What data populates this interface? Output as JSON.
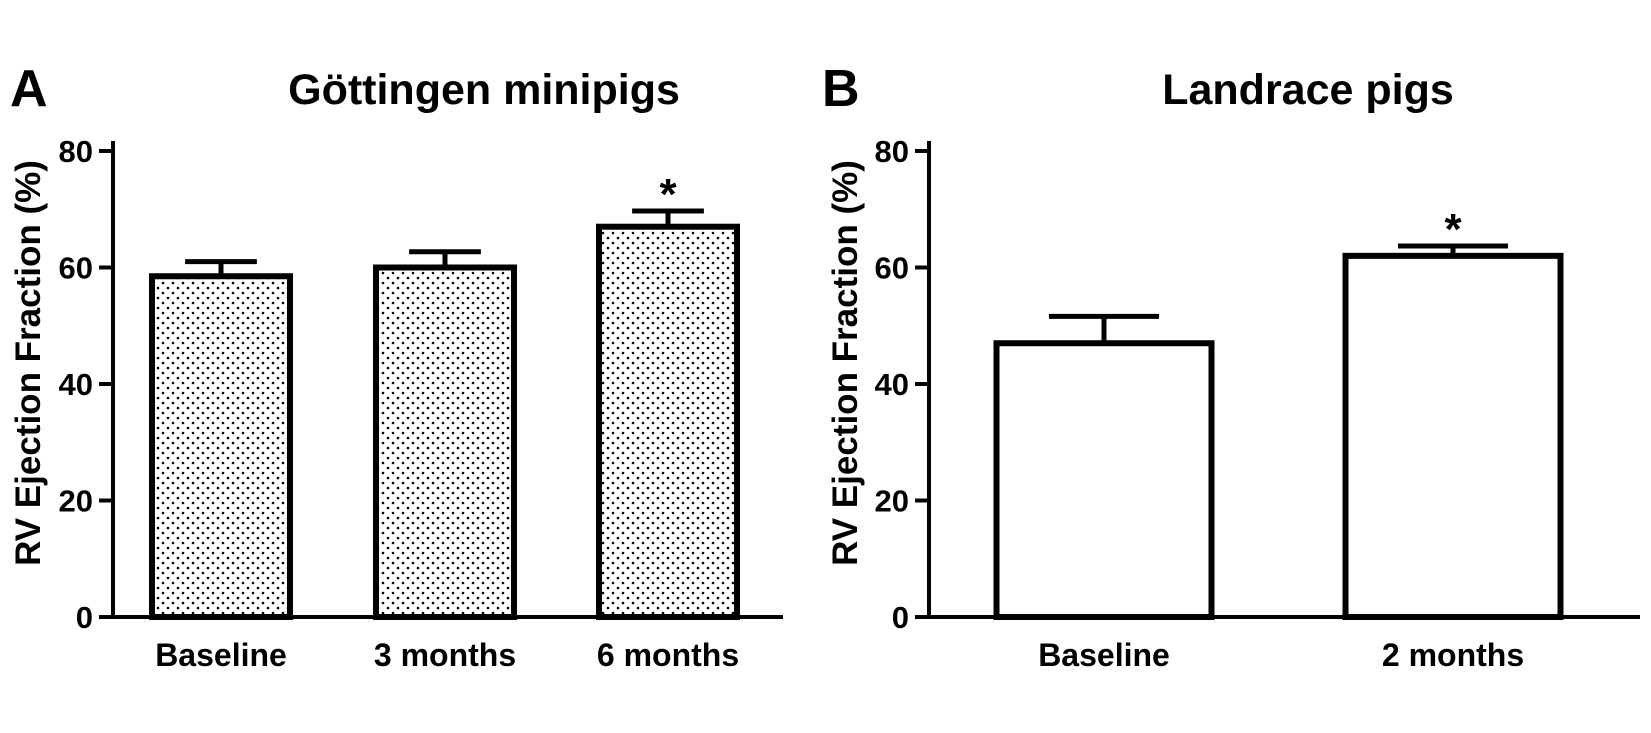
{
  "chart_data": [
    {
      "type": "bar",
      "panel": "A",
      "title": "Göttingen minipigs",
      "ylabel": "RV Ejection Fraction (%)",
      "xlabel": "",
      "ylim": [
        0,
        80
      ],
      "yticks": [
        "0",
        "20",
        "40",
        "60",
        "80"
      ],
      "categories": [
        "Baseline",
        "3 months",
        "6 months"
      ],
      "values": [
        58.5,
        60,
        67
      ],
      "errors": [
        2.5,
        2.7,
        2.7
      ],
      "significance": [
        "",
        "",
        "*"
      ],
      "fill": "dotted"
    },
    {
      "type": "bar",
      "panel": "B",
      "title": "Landrace pigs",
      "ylabel": "RV Ejection Fraction (%)",
      "xlabel": "",
      "ylim": [
        0,
        80
      ],
      "yticks": [
        "0",
        "20",
        "40",
        "60",
        "80"
      ],
      "categories": [
        "Baseline",
        "2 months"
      ],
      "values": [
        47,
        62
      ],
      "errors": [
        4.6,
        1.7
      ],
      "significance": [
        "",
        "*"
      ],
      "fill": "white"
    }
  ]
}
